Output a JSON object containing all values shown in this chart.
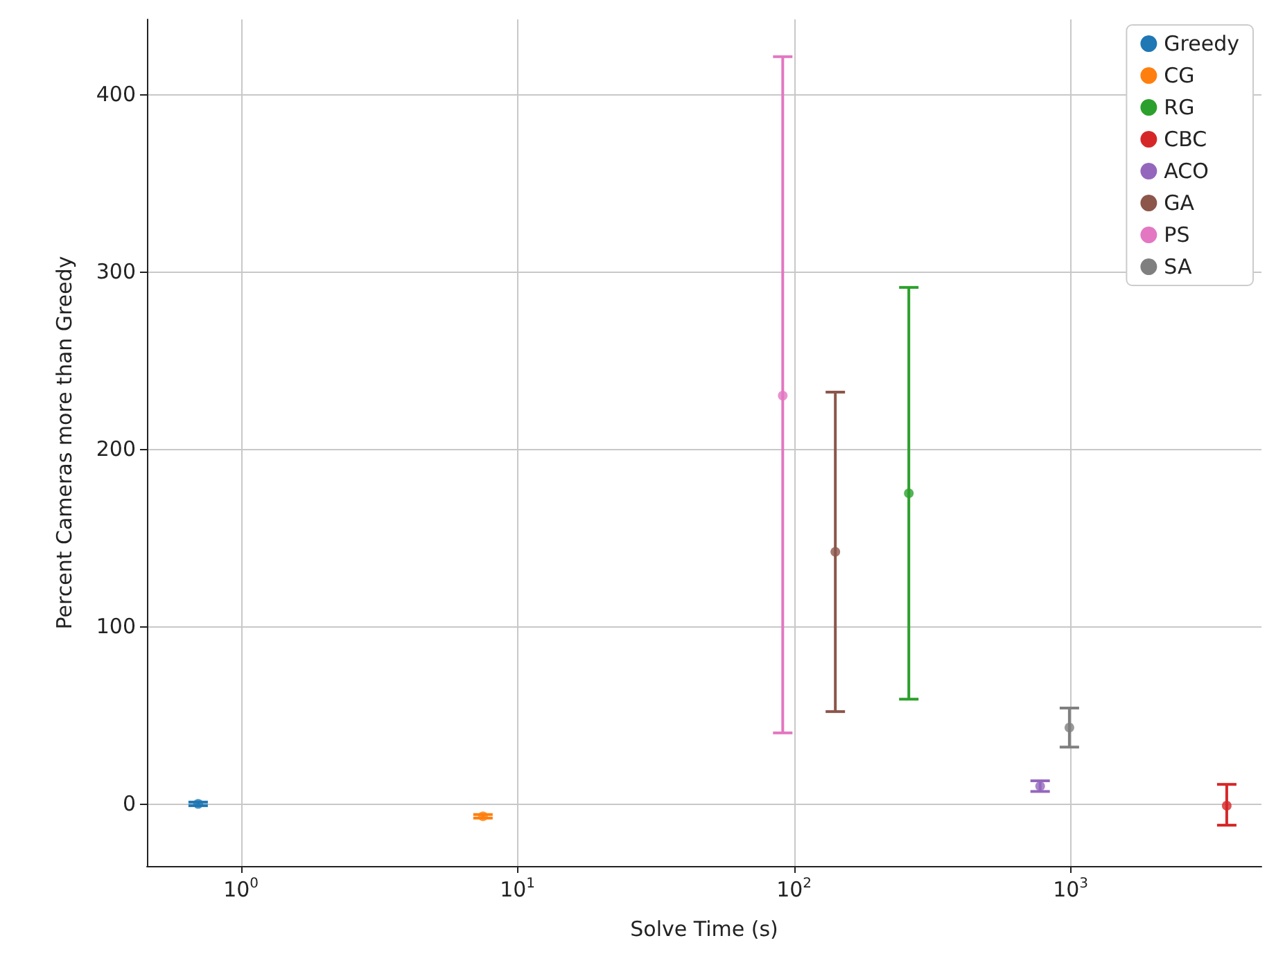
{
  "chart_data": {
    "type": "scatter",
    "xlabel": "Solve Time (s)",
    "ylabel": "Percent Cameras more than Greedy",
    "log": "x",
    "grid": true,
    "legend": "top right",
    "marker": "circle",
    "xlim": [
      0.457,
      4900
    ],
    "xticks": [
      {
        "value": 1,
        "label": "10$^{0}$"
      },
      {
        "value": 10,
        "label": "10$^{1}$"
      },
      {
        "value": 100,
        "label": "10$^{2}$"
      },
      {
        "value": 1000,
        "label": "10$^{3}$"
      }
    ],
    "ylim": [
      -35,
      442
    ],
    "yticks": [
      0,
      100,
      200,
      300,
      400
    ],
    "series": [
      {
        "name": "Greedy",
        "color": "#1f77b4",
        "x": [
          0.7
        ],
        "values": [
          0
        ],
        "errors": [
          [
            -1,
            1
          ]
        ]
      },
      {
        "name": "CG",
        "color": "#ff7f0e",
        "x": [
          7.5
        ],
        "values": [
          -7
        ],
        "errors": [
          [
            -8,
            -6
          ]
        ]
      },
      {
        "name": "RG",
        "color": "#2ca02c",
        "x": [
          260
        ],
        "values": [
          175
        ],
        "errors": [
          [
            59,
            291
          ]
        ]
      },
      {
        "name": "CBC",
        "color": "#d62728",
        "x": [
          3670
        ],
        "values": [
          -1
        ],
        "errors": [
          [
            -12,
            11
          ]
        ]
      },
      {
        "name": "ACO",
        "color": "#9467bd",
        "x": [
          776
        ],
        "values": [
          10
        ],
        "errors": [
          [
            7,
            13
          ]
        ]
      },
      {
        "name": "GA",
        "color": "#8c564b",
        "x": [
          141
        ],
        "values": [
          142
        ],
        "errors": [
          [
            52,
            232
          ]
        ]
      },
      {
        "name": "PS",
        "color": "#e377c2",
        "x": [
          91
        ],
        "values": [
          230
        ],
        "errors": [
          [
            40,
            421
          ]
        ]
      },
      {
        "name": "SA",
        "color": "#7f7f7f",
        "x": [
          990
        ],
        "values": [
          43
        ],
        "errors": [
          [
            32,
            54
          ]
        ]
      }
    ]
  }
}
